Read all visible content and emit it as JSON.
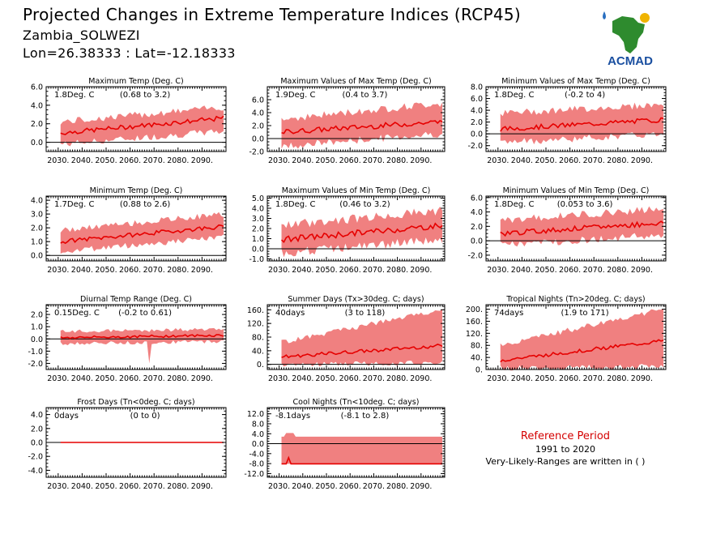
{
  "header": {
    "title": "Projected Changes in Extreme Temperature Indices (RCP45)",
    "location": "Zambia_SOLWEZI",
    "coords": "Lon=26.38333 : Lat=-12.18333"
  },
  "logo": {
    "text": "ACMAD",
    "icon": "africa-map-logo"
  },
  "reference": {
    "title": "Reference Period",
    "years": "1991 to 2020",
    "note": "Very-Likely-Ranges are written in ( )"
  },
  "colors": {
    "band": "#f08080",
    "line": "#e60000",
    "zero": "#000000"
  },
  "chart_data": [
    {
      "type": "area",
      "title": "Maximum Temp (Deg. C)",
      "stat": "1.8Deg. C",
      "range": "(0.68 to 3.2)",
      "ylim": [
        -1.0,
        6.0
      ],
      "yticks": [
        "6.0",
        "4.0",
        "2.0",
        "0.0"
      ],
      "xticks": [
        "2030.",
        "2040.",
        "2050.",
        "2060.",
        "2070.",
        "2080.",
        "2090."
      ],
      "start": 1.0,
      "end": 2.6,
      "low_start": -0.2,
      "low_end": 1.2,
      "high_start": 2.2,
      "high_end": 3.8,
      "noise": 0.25,
      "dip": null
    },
    {
      "type": "area",
      "title": "Maximum Values of Max Temp (Deg. C)",
      "stat": "1.9Deg. C",
      "range": "(0.4 to 3.7)",
      "ylim": [
        -2.0,
        8.0
      ],
      "yticks": [
        "6.0",
        "4.0",
        "2.0",
        "0.0",
        "-2.0"
      ],
      "xticks": [
        "2030.",
        "2040.",
        "2050.",
        "2060.",
        "2070.",
        "2080.",
        "2090."
      ],
      "start": 1.0,
      "end": 2.6,
      "low_start": -1.2,
      "low_end": 0.8,
      "high_start": 3.0,
      "high_end": 5.5,
      "noise": 0.4,
      "dip": null
    },
    {
      "type": "area",
      "title": "Minimum Values of Max Temp (Deg. C)",
      "stat": "1.8Deg. C",
      "range": "(-0.2 to 4)",
      "ylim": [
        -3.0,
        8.0
      ],
      "yticks": [
        "8.0",
        "6.0",
        "4.0",
        "2.0",
        "0.0",
        "-2.0"
      ],
      "xticks": [
        "2030.",
        "2040.",
        "2050.",
        "2060.",
        "2070.",
        "2080.",
        "2090."
      ],
      "start": 0.8,
      "end": 2.4,
      "low_start": -1.5,
      "low_end": 0.0,
      "high_start": 3.5,
      "high_end": 5.0,
      "noise": 0.4,
      "dip": null
    },
    {
      "type": "area",
      "title": "Minimum Temp (Deg. C)",
      "stat": "1.7Deg. C",
      "range": "(0.88 to 2.6)",
      "ylim": [
        -0.4,
        4.3
      ],
      "yticks": [
        "4.0",
        "3.0",
        "2.0",
        "1.0",
        "0.0"
      ],
      "xticks": [
        "2030.",
        "2040.",
        "2050.",
        "2060.",
        "2070.",
        "2080.",
        "2090."
      ],
      "start": 1.0,
      "end": 2.1,
      "low_start": 0.3,
      "low_end": 1.3,
      "high_start": 1.8,
      "high_end": 3.0,
      "noise": 0.15,
      "dip": null
    },
    {
      "type": "area",
      "title": "Maximum Values of Min Temp (Deg. C)",
      "stat": "1.8Deg. C",
      "range": "(0.46 to 3.2)",
      "ylim": [
        -1.2,
        5.2
      ],
      "yticks": [
        "5.0",
        "4.0",
        "3.0",
        "2.0",
        "1.0",
        "0.0",
        "-1.0"
      ],
      "xticks": [
        "2030.",
        "2040.",
        "2050.",
        "2060.",
        "2070.",
        "2080.",
        "2090."
      ],
      "start": 0.9,
      "end": 2.3,
      "low_start": -0.4,
      "low_end": 0.9,
      "high_start": 2.3,
      "high_end": 3.8,
      "noise": 0.3,
      "dip": null
    },
    {
      "type": "area",
      "title": "Minimum Values of Min Temp (Deg. C)",
      "stat": "1.8Deg. C",
      "range": "(0.053 to 3.6)",
      "ylim": [
        -2.8,
        6.2
      ],
      "yticks": [
        "6.0",
        "4.0",
        "2.0",
        "0.0",
        "-2.0"
      ],
      "xticks": [
        "2030.",
        "2040.",
        "2050.",
        "2060.",
        "2070.",
        "2080.",
        "2090."
      ],
      "start": 1.0,
      "end": 2.5,
      "low_start": -0.6,
      "low_end": 0.8,
      "high_start": 2.8,
      "high_end": 4.5,
      "noise": 0.35,
      "dip": null
    },
    {
      "type": "area",
      "title": "Diurnal Temp Range (Deg. C)",
      "stat": "0.15Deg. C",
      "range": "(-0.2 to 0.61)",
      "ylim": [
        -2.5,
        2.8
      ],
      "yticks": [
        "2.0",
        "1.0",
        "0.0",
        "-1.0",
        "-2.0"
      ],
      "xticks": [
        "2030.",
        "2040.",
        "2050.",
        "2060.",
        "2070.",
        "2080.",
        "2090."
      ],
      "start": 0.1,
      "end": 0.3,
      "low_start": -0.4,
      "low_end": -0.2,
      "high_start": 0.6,
      "high_end": 0.8,
      "noise": 0.1,
      "dip": {
        "x": 2068,
        "low": -2.0
      }
    },
    {
      "type": "area",
      "title": "Summer Days (Tx>30deg. C; days)",
      "stat": "40days",
      "range": "(3 to 118)",
      "ylim": [
        -15,
        175
      ],
      "yticks": [
        "160.",
        "120.",
        "80.",
        "40.",
        "0."
      ],
      "xticks": [
        "2030.",
        "2040.",
        "2050.",
        "2060.",
        "2070.",
        "2080.",
        "2090."
      ],
      "start": 22,
      "end": 55,
      "low_start": 0,
      "low_end": 5,
      "high_start": 65,
      "high_end": 160,
      "noise": 5,
      "dip": null
    },
    {
      "type": "area",
      "title": "Tropical Nights (Tn>20deg. C; days)",
      "stat": "74days",
      "range": "(1.9 to 171)",
      "ylim": [
        0,
        215
      ],
      "yticks": [
        "200.",
        "160.",
        "120.",
        "80.",
        "40.",
        "0."
      ],
      "xticks": [
        "2030.",
        "2040.",
        "2050.",
        "2060.",
        "2070.",
        "2080.",
        "2090."
      ],
      "start": 30,
      "end": 95,
      "low_start": 5,
      "low_end": 10,
      "high_start": 80,
      "high_end": 200,
      "noise": 6,
      "dip": null
    },
    {
      "type": "area",
      "title": "Frost Days (Tn<0deg. C; days)",
      "stat": "0days",
      "range": "(0 to 0)",
      "ylim": [
        -5.0,
        5.0
      ],
      "yticks": [
        "4.0",
        "2.0",
        "0.0",
        "-2.0",
        "-4.0"
      ],
      "xticks": [
        "2030.",
        "2040.",
        "2050.",
        "2060.",
        "2070.",
        "2080.",
        "2090."
      ],
      "start": 0,
      "end": 0,
      "low_start": 0,
      "low_end": 0,
      "high_start": 0,
      "high_end": 0,
      "noise": 0,
      "dip": null
    },
    {
      "type": "area",
      "title": "Cool Nights (Tn<10deg. C; days)",
      "stat": "-8.1days",
      "range": "(-8.1 to 2.8)",
      "ylim": [
        -13.5,
        14.5
      ],
      "yticks": [
        "12.0",
        "8.0",
        "4.0",
        "0.0",
        "-4.0",
        "-8.0",
        "-12.0"
      ],
      "xticks": [
        "2030.",
        "2040.",
        "2050.",
        "2060.",
        "2070.",
        "2080.",
        "2090."
      ],
      "start": -8.1,
      "end": -8.1,
      "low_start": -8.1,
      "low_end": -8.1,
      "high_start": 2.8,
      "high_end": 2.8,
      "noise": 0,
      "dip": null,
      "flat": true
    }
  ]
}
